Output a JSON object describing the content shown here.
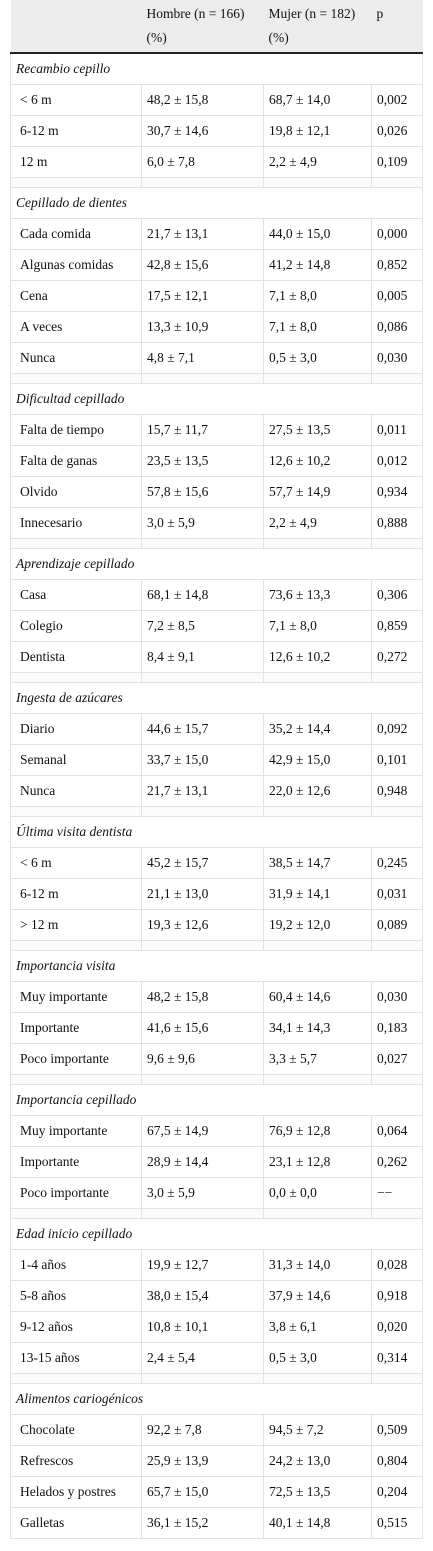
{
  "header": {
    "columns": [
      "Hombre (n = 166) (%)",
      "Mujer (n = 182) (%)",
      "p"
    ]
  },
  "sections": [
    {
      "title": "Recambio cepillo",
      "rows": [
        [
          "< 6 m",
          "48,2 ± 15,8",
          "68,7 ± 14,0",
          "0,002"
        ],
        [
          "6-12 m",
          "30,7 ± 14,6",
          "19,8 ± 12,1",
          "0,026"
        ],
        [
          "12 m",
          "6,0 ± 7,8",
          "2,2 ± 4,9",
          "0,109"
        ]
      ]
    },
    {
      "title": "Cepillado de dientes",
      "rows": [
        [
          "Cada comida",
          "21,7 ± 13,1",
          "44,0 ± 15,0",
          "0,000"
        ],
        [
          "Algunas comidas",
          "42,8 ± 15,6",
          "41,2 ± 14,8",
          "0,852"
        ],
        [
          "Cena",
          "17,5 ± 12,1",
          "7,1 ± 8,0",
          "0,005"
        ],
        [
          "A veces",
          "13,3 ± 10,9",
          "7,1 ± 8,0",
          "0,086"
        ],
        [
          "Nunca",
          "4,8 ± 7,1",
          "0,5 ± 3,0",
          "0,030"
        ]
      ]
    },
    {
      "title": "Dificultad cepillado",
      "rows": [
        [
          "Falta de tiempo",
          "15,7 ± 11,7",
          "27,5 ± 13,5",
          "0,011"
        ],
        [
          "Falta de ganas",
          "23,5 ± 13,5",
          "12,6 ± 10,2",
          "0,012"
        ],
        [
          "Olvido",
          "57,8 ± 15,6",
          "57,7 ± 14,9",
          "0,934"
        ],
        [
          "Innecesario",
          "3,0 ± 5,9",
          "2,2 ± 4,9",
          "0,888"
        ]
      ]
    },
    {
      "title": "Aprendizaje cepillado",
      "rows": [
        [
          "Casa",
          "68,1 ± 14,8",
          "73,6 ± 13,3",
          "0,306"
        ],
        [
          "Colegio",
          "7,2 ± 8,5",
          "7,1 ± 8,0",
          "0,859"
        ],
        [
          "Dentista",
          "8,4 ± 9,1",
          "12,6 ± 10,2",
          "0,272"
        ]
      ]
    },
    {
      "title": "Ingesta de azúcares",
      "rows": [
        [
          "Diario",
          "44,6 ± 15,7",
          "35,2 ± 14,4",
          "0,092"
        ],
        [
          "Semanal",
          "33,7 ± 15,0",
          "42,9 ± 15,0",
          "0,101"
        ],
        [
          "Nunca",
          "21,7 ± 13,1",
          "22,0 ± 12,6",
          "0,948"
        ]
      ]
    },
    {
      "title": "Última visita dentista",
      "rows": [
        [
          "< 6 m",
          "45,2 ± 15,7",
          "38,5 ± 14,7",
          "0,245"
        ],
        [
          "6-12 m",
          "21,1 ± 13,0",
          "31,9 ± 14,1",
          "0,031"
        ],
        [
          "> 12 m",
          "19,3 ± 12,6",
          "19,2 ± 12,0",
          "0,089"
        ]
      ]
    },
    {
      "title": "Importancia visita",
      "rows": [
        [
          "Muy importante",
          "48,2 ± 15,8",
          "60,4 ± 14,6",
          "0,030"
        ],
        [
          "Importante",
          "41,6 ± 15,6",
          "34,1 ± 14,3",
          "0,183"
        ],
        [
          "Poco importante",
          "9,6 ± 9,6",
          "3,3 ± 5,7",
          "0,027"
        ]
      ]
    },
    {
      "title": "Importancia cepillado",
      "rows": [
        [
          "Muy importante",
          "67,5 ± 14,9",
          "76,9 ± 12,8",
          "0,064"
        ],
        [
          "Importante",
          "28,9 ± 14,4",
          "23,1 ± 12,8",
          "0,262"
        ],
        [
          "Poco importante",
          "3,0 ± 5,9",
          "0,0 ± 0,0",
          "−−"
        ]
      ]
    },
    {
      "title": "Edad inicio cepillado",
      "rows": [
        [
          "1-4 años",
          "19,9 ± 12,7",
          "31,3 ± 14,0",
          "0,028"
        ],
        [
          "5-8 años",
          "38,0 ± 15,4",
          "37,9 ± 14,6",
          "0,918"
        ],
        [
          "9-12 años",
          "10,8 ± 10,1",
          "3,8 ± 6,1",
          "0,020"
        ],
        [
          "13-15 años",
          "2,4 ± 5,4",
          "0,5 ± 3,0",
          "0,314"
        ]
      ]
    },
    {
      "title": "Alimentos cariogénicos",
      "rows": [
        [
          "Chocolate",
          "92,2 ± 7,8",
          "94,5 ± 7,2",
          "0,509"
        ],
        [
          "Refrescos",
          "25,9 ± 13,9",
          "24,2 ± 13,0",
          "0,804"
        ],
        [
          "Helados y postres",
          "65,7 ± 15,0",
          "72,5 ± 13,5",
          "0,204"
        ],
        [
          "Galletas",
          "36,1 ± 15,2",
          "40,1 ± 14,8",
          "0,515"
        ]
      ]
    }
  ]
}
